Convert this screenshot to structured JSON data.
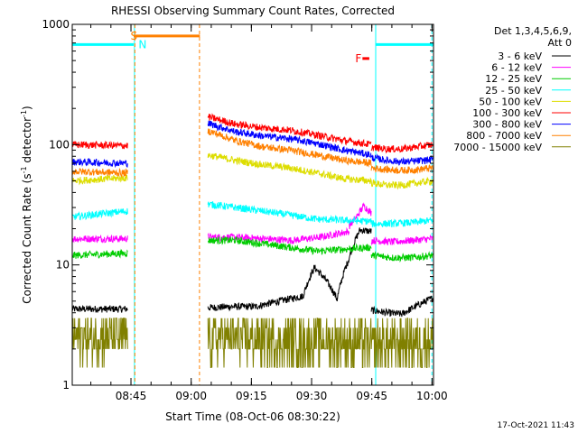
{
  "chart_data": {
    "type": "line",
    "title": "RHESSI Observing Summary Count Rates, Corrected",
    "xlabel": "Start Time (08-Oct-06 08:30:22)",
    "ylabel_main": "Corrected Count Rate (s",
    "ylabel_sup1": "-1",
    "ylabel_mid": " detector",
    "ylabel_sup2": "-1",
    "ylabel_end": ")",
    "yscale": "log",
    "ylim": [
      1,
      1000
    ],
    "yticks": [
      {
        "value": 1,
        "label": "1"
      },
      {
        "value": 10,
        "label": "10"
      },
      {
        "value": 100,
        "label": "100"
      },
      {
        "value": 1000,
        "label": "1000"
      }
    ],
    "xlim_minutes": [
      0,
      90
    ],
    "xticks": [
      {
        "minutes": 14.63,
        "label": "08:45"
      },
      {
        "minutes": 29.63,
        "label": "09:00"
      },
      {
        "minutes": 44.63,
        "label": "09:15"
      },
      {
        "minutes": 59.63,
        "label": "09:30"
      },
      {
        "minutes": 74.63,
        "label": "09:45"
      },
      {
        "minutes": 89.63,
        "label": "10:00"
      }
    ],
    "legend": {
      "placement": "right",
      "header1": "Det 1,3,4,5,6,9,",
      "header2": "Att 0"
    },
    "series": [
      {
        "name": "3 - 6 keV",
        "color": "#000000",
        "segments": [
          {
            "from": 0,
            "to": 13.8,
            "values": [
              4.3,
              4.3
            ]
          },
          {
            "from": 33.8,
            "to": 57.5,
            "values": [
              4.4,
              4.5,
              4.5,
              5.0,
              5.5
            ]
          },
          {
            "from": 57.5,
            "to": 74.5,
            "values": [
              5.5,
              9.5,
              7.5,
              5.2,
              11.0,
              19.5,
              19.0
            ]
          },
          {
            "from": 74.5,
            "to": 89.8,
            "values": [
              4.2,
              4.0,
              3.9,
              4.6,
              5.3
            ]
          }
        ]
      },
      {
        "name": "6 - 12 keV",
        "color": "#ff00ff",
        "segments": [
          {
            "from": 0,
            "to": 13.8,
            "values": [
              16.5,
              16.5
            ]
          },
          {
            "from": 33.8,
            "to": 69.0,
            "values": [
              17.0,
              17.0,
              16.5,
              16.0,
              17.0,
              19.0
            ]
          },
          {
            "from": 69.0,
            "to": 74.5,
            "values": [
              21.0,
              25.0,
              31.0,
              27.0
            ]
          },
          {
            "from": 74.5,
            "to": 89.8,
            "values": [
              16.0,
              15.5,
              16.0,
              16.5
            ]
          }
        ]
      },
      {
        "name": "12 - 25 keV",
        "color": "#00cc00",
        "segments": [
          {
            "from": 0,
            "to": 13.8,
            "values": [
              12.0,
              12.5
            ]
          },
          {
            "from": 33.8,
            "to": 74.5,
            "values": [
              16.0,
              16.0,
              15.0,
              14.0,
              13.0,
              13.5,
              14.0
            ]
          },
          {
            "from": 74.5,
            "to": 89.8,
            "values": [
              12.0,
              11.5,
              11.5,
              12.0
            ]
          }
        ]
      },
      {
        "name": "25 - 50 keV",
        "color": "#00ffff",
        "segments": [
          {
            "from": 0,
            "to": 13.8,
            "values": [
              25.0,
              28.0
            ]
          },
          {
            "from": 33.8,
            "to": 74.5,
            "values": [
              32.0,
              30.0,
              28.0,
              26.0,
              24.0,
              23.5,
              23.0
            ]
          },
          {
            "from": 74.5,
            "to": 89.8,
            "values": [
              22.0,
              22.0,
              22.5,
              23.5
            ]
          }
        ]
      },
      {
        "name": "50 - 100 keV",
        "color": "#dddd00",
        "segments": [
          {
            "from": 0,
            "to": 13.8,
            "values": [
              50.0,
              53.0
            ]
          },
          {
            "from": 33.8,
            "to": 74.5,
            "values": [
              82.0,
              74.0,
              68.0,
              64.0,
              58.0,
              52.0,
              50.0
            ]
          },
          {
            "from": 74.5,
            "to": 89.8,
            "values": [
              48.0,
              46.0,
              46.0,
              48.0,
              50.0
            ]
          }
        ]
      },
      {
        "name": "100 - 300 keV",
        "color": "#ff0000",
        "segments": [
          {
            "from": 0,
            "to": 13.8,
            "values": [
              100.0,
              98.0
            ]
          },
          {
            "from": 33.8,
            "to": 74.5,
            "values": [
              170.0,
              148.0,
              138.0,
              132.0,
              120.0,
              108.0,
              100.0
            ]
          },
          {
            "from": 74.5,
            "to": 89.8,
            "values": [
              95.0,
              92.0,
              92.0,
              96.0,
              100.0
            ]
          }
        ]
      },
      {
        "name": "300 - 800 keV",
        "color": "#0000ff",
        "segments": [
          {
            "from": 0,
            "to": 13.8,
            "values": [
              72.0,
              70.0
            ]
          },
          {
            "from": 33.8,
            "to": 74.5,
            "values": [
              150.0,
              128.0,
              118.0,
              112.0,
              102.0,
              90.0,
              82.0
            ]
          },
          {
            "from": 74.5,
            "to": 89.8,
            "values": [
              78.0,
              74.0,
              72.0,
              73.0,
              75.0
            ]
          }
        ]
      },
      {
        "name": "800 - 7000 keV",
        "color": "#ff8000",
        "segments": [
          {
            "from": 0,
            "to": 13.8,
            "values": [
              60.0,
              58.0
            ]
          },
          {
            "from": 33.8,
            "to": 74.5,
            "values": [
              130.0,
              108.0,
              96.0,
              90.0,
              82.0,
              74.0,
              70.0
            ]
          },
          {
            "from": 74.5,
            "to": 89.8,
            "values": [
              64.0,
              62.0,
              61.0,
              62.0,
              64.0
            ]
          }
        ]
      },
      {
        "name": "7000 - 15000 keV",
        "color": "#808000",
        "segments": [
          {
            "from": 0,
            "to": 13.8,
            "values": [
              2.5,
              2.5
            ]
          },
          {
            "from": 33.8,
            "to": 74.5,
            "values": [
              2.4,
              2.4,
              2.3,
              2.3,
              2.3,
              2.2
            ]
          },
          {
            "from": 74.5,
            "to": 89.8,
            "values": [
              2.2,
              2.2,
              2.3,
              2.3
            ]
          }
        ]
      }
    ],
    "annotations": [
      {
        "label": "S",
        "color": "#ff8000",
        "minutes": 14.5,
        "y": 800
      },
      {
        "label": "N",
        "color": "#00ffff",
        "minutes": 16.5,
        "y": 680
      },
      {
        "label": "F",
        "color": "#ff0000",
        "minutes": 70.5,
        "y": 520
      }
    ],
    "state_bars": [
      {
        "name": "night",
        "color": "#00ffff",
        "from": 0,
        "to": 15.3,
        "y": 680
      },
      {
        "name": "saa",
        "color": "#ff8000",
        "from": 15.3,
        "to": 31.8,
        "y": 800
      },
      {
        "name": "flare",
        "color": "#ff0000",
        "from": 72.3,
        "to": 74.0,
        "y": 520
      },
      {
        "name": "night",
        "color": "#00ffff",
        "from": 75.5,
        "to": 90,
        "y": 680
      }
    ],
    "vertical_lines": [
      {
        "minutes": 15.5,
        "color": "#00ffff",
        "style": "solid"
      },
      {
        "minutes": 15.6,
        "color": "#ff8000",
        "style": "dashed"
      },
      {
        "minutes": 31.7,
        "color": "#ff8000",
        "style": "dashed"
      },
      {
        "minutes": 75.6,
        "color": "#00ffff",
        "style": "solid"
      },
      {
        "minutes": 89.6,
        "color": "#00ffff",
        "style": "dashed"
      }
    ]
  },
  "footer": {
    "timestamp": "17-Oct-2021 11:43"
  }
}
